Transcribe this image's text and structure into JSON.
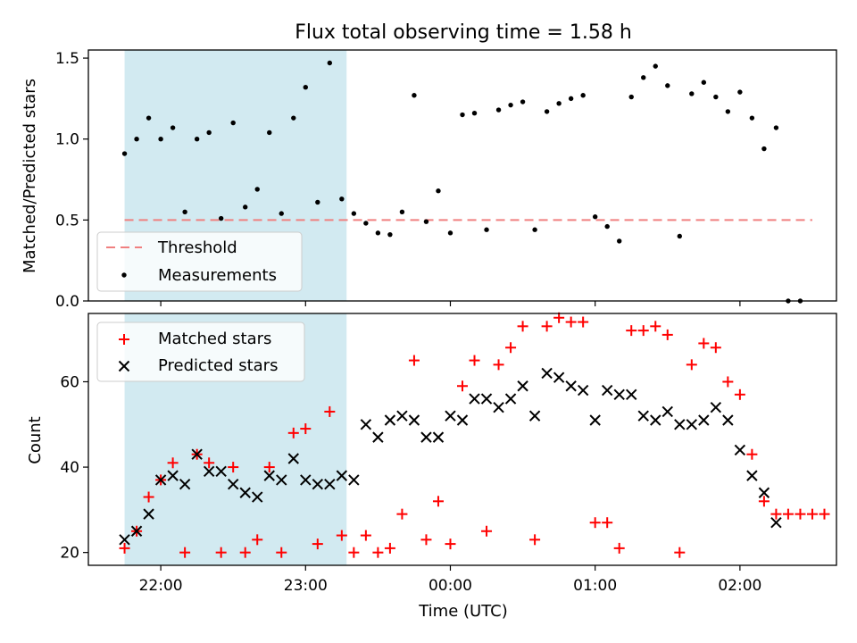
{
  "title": "Flux total observing time = 1.58 h",
  "xlabel": "Time (UTC)",
  "x_ticks": [
    "22:00",
    "23:00",
    "00:00",
    "01:00",
    "02:00"
  ],
  "colors": {
    "band": "#add8e6",
    "threshold": "#f08080",
    "measurement": "#000000",
    "matched": "#ff0000",
    "predicted": "#000000"
  },
  "chart_data": [
    {
      "type": "scatter",
      "ylabel": "Matched/Predicted stars",
      "ylim": [
        0,
        1.55
      ],
      "y_ticks": [
        "0.0",
        "0.5",
        "1.0",
        "1.5"
      ],
      "xlim": [
        "21:30",
        "02:40"
      ],
      "shaded_span": [
        "21:45",
        "23:17"
      ],
      "threshold": 0.5,
      "legend": {
        "placement": "lower-left",
        "entries": [
          "Threshold",
          "Measurements"
        ]
      },
      "series": [
        {
          "name": "Measurements",
          "x": [
            "21:45",
            "21:50",
            "21:55",
            "22:00",
            "22:05",
            "22:10",
            "22:15",
            "22:20",
            "22:25",
            "22:30",
            "22:35",
            "22:40",
            "22:45",
            "22:50",
            "22:55",
            "23:00",
            "23:05",
            "23:10",
            "23:15",
            "23:20",
            "23:25",
            "23:30",
            "23:35",
            "23:40",
            "23:45",
            "23:50",
            "23:55",
            "00:00",
            "00:05",
            "00:10",
            "00:15",
            "00:20",
            "00:25",
            "00:30",
            "00:35",
            "00:40",
            "00:45",
            "00:50",
            "00:55",
            "01:00",
            "01:05",
            "01:10",
            "01:15",
            "01:20",
            "01:25",
            "01:30",
            "01:35",
            "01:40",
            "01:45",
            "01:50",
            "01:55",
            "02:00",
            "02:05",
            "02:10",
            "02:15",
            "02:20",
            "02:25"
          ],
          "y": [
            0.91,
            1.0,
            1.13,
            1.0,
            1.07,
            0.55,
            1.0,
            1.04,
            0.51,
            1.1,
            0.58,
            0.69,
            1.04,
            0.54,
            1.13,
            1.32,
            0.61,
            1.47,
            0.63,
            0.54,
            0.48,
            0.42,
            0.41,
            0.55,
            1.27,
            0.49,
            0.68,
            0.42,
            1.15,
            1.16,
            0.44,
            1.18,
            1.21,
            1.23,
            0.44,
            1.17,
            1.22,
            1.25,
            1.27,
            0.52,
            0.46,
            0.37,
            1.26,
            1.38,
            1.45,
            1.33,
            0.4,
            1.28,
            1.35,
            1.26,
            1.17,
            1.29,
            1.13,
            0.94,
            1.07,
            0.0,
            0.0
          ]
        }
      ]
    },
    {
      "type": "scatter",
      "ylabel": "Count",
      "ylim": [
        17,
        76
      ],
      "y_ticks": [
        "20",
        "40",
        "60"
      ],
      "xlim": [
        "21:30",
        "02:40"
      ],
      "shaded_span": [
        "21:45",
        "23:17"
      ],
      "legend": {
        "placement": "upper-left",
        "entries": [
          "Matched stars",
          "Predicted stars"
        ]
      },
      "series": [
        {
          "name": "Matched stars",
          "marker": "plus",
          "x": [
            "21:45",
            "21:50",
            "21:55",
            "22:00",
            "22:05",
            "22:10",
            "22:15",
            "22:20",
            "22:25",
            "22:30",
            "22:35",
            "22:40",
            "22:45",
            "22:50",
            "22:55",
            "23:00",
            "23:05",
            "23:10",
            "23:15",
            "23:20",
            "23:25",
            "23:30",
            "23:35",
            "23:40",
            "23:45",
            "23:50",
            "23:55",
            "00:00",
            "00:05",
            "00:10",
            "00:15",
            "00:20",
            "00:25",
            "00:30",
            "00:35",
            "00:40",
            "00:45",
            "00:50",
            "00:55",
            "01:00",
            "01:05",
            "01:10",
            "01:15",
            "01:20",
            "01:25",
            "01:30",
            "01:35",
            "01:40",
            "01:45",
            "01:50",
            "01:55",
            "02:00",
            "02:05",
            "02:10",
            "02:15",
            "02:20",
            "02:25",
            "02:30",
            "02:35"
          ],
          "y": [
            21,
            25,
            33,
            37,
            41,
            20,
            43,
            41,
            20,
            40,
            20,
            23,
            40,
            20,
            48,
            49,
            22,
            53,
            24,
            20,
            24,
            20,
            21,
            29,
            65,
            23,
            32,
            22,
            59,
            65,
            25,
            64,
            68,
            73,
            23,
            73,
            75,
            74,
            74,
            27,
            27,
            21,
            72,
            72,
            73,
            71,
            20,
            64,
            69,
            68,
            60,
            57,
            43,
            32,
            29,
            29,
            29,
            29,
            29
          ]
        },
        {
          "name": "Predicted stars",
          "marker": "x",
          "x": [
            "21:45",
            "21:50",
            "21:55",
            "22:00",
            "22:05",
            "22:10",
            "22:15",
            "22:20",
            "22:25",
            "22:30",
            "22:35",
            "22:40",
            "22:45",
            "22:50",
            "22:55",
            "23:00",
            "23:05",
            "23:10",
            "23:15",
            "23:20",
            "23:25",
            "23:30",
            "23:35",
            "23:40",
            "23:45",
            "23:50",
            "23:55",
            "00:00",
            "00:05",
            "00:10",
            "00:15",
            "00:20",
            "00:25",
            "00:30",
            "00:35",
            "00:40",
            "00:45",
            "00:50",
            "00:55",
            "01:00",
            "01:05",
            "01:10",
            "01:15",
            "01:20",
            "01:25",
            "01:30",
            "01:35",
            "01:40",
            "01:45",
            "01:50",
            "01:55",
            "02:00",
            "02:05",
            "02:10",
            "02:15"
          ],
          "y": [
            23,
            25,
            29,
            37,
            38,
            36,
            43,
            39,
            39,
            36,
            34,
            33,
            38,
            37,
            42,
            37,
            36,
            36,
            38,
            37,
            50,
            47,
            51,
            52,
            51,
            47,
            47,
            52,
            51,
            56,
            56,
            54,
            56,
            59,
            52,
            62,
            61,
            59,
            58,
            51,
            58,
            57,
            57,
            52,
            51,
            53,
            50,
            50,
            51,
            54,
            51,
            44,
            38,
            34,
            27
          ]
        }
      ]
    }
  ]
}
